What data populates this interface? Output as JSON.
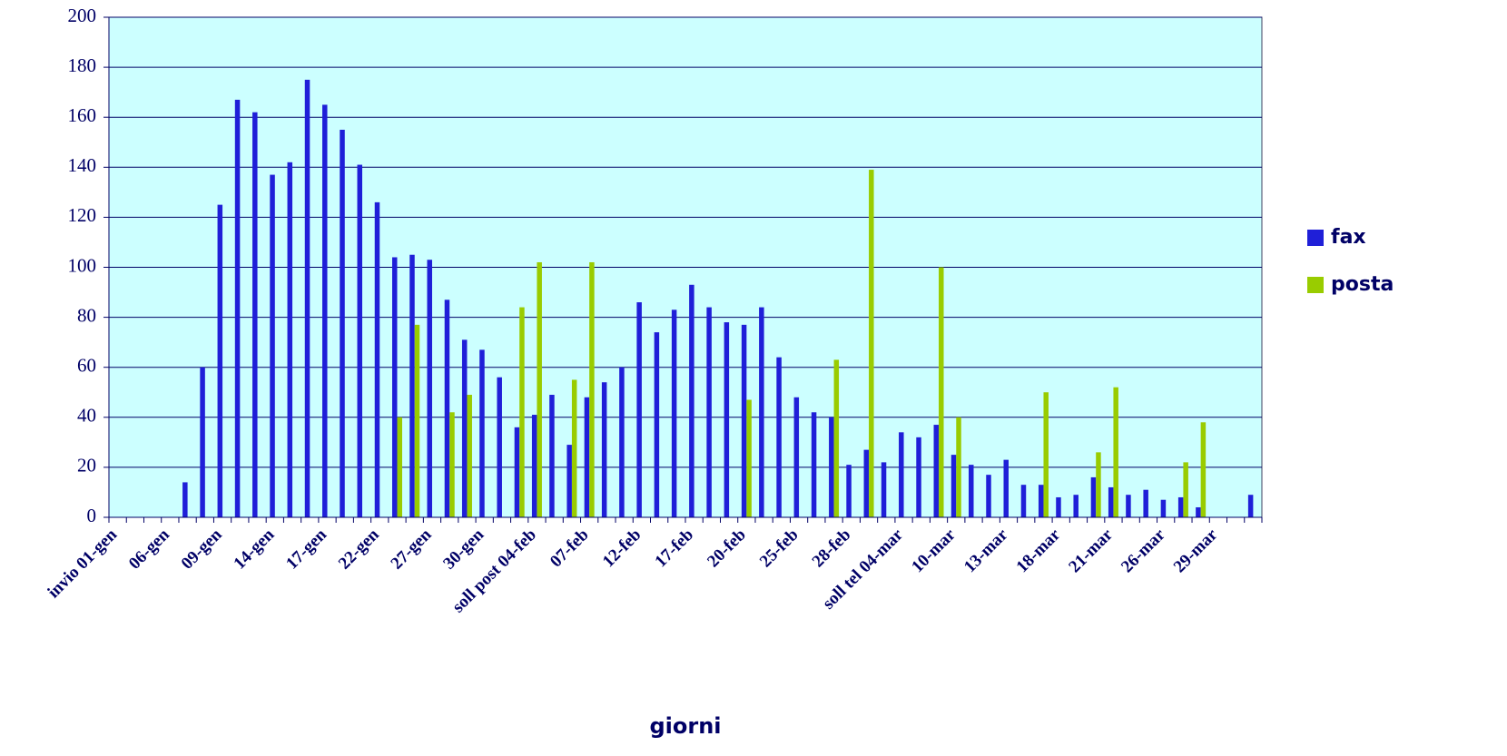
{
  "chart_data": {
    "type": "bar",
    "x_label": "giorni",
    "categories": [
      "invio 01-gen",
      null,
      null,
      "06-gen",
      null,
      null,
      "09-gen",
      null,
      null,
      "14-gen",
      null,
      null,
      "17-gen",
      null,
      null,
      "22-gen",
      null,
      null,
      "27-gen",
      null,
      null,
      "30-gen",
      null,
      null,
      "soll post 04-feb",
      null,
      null,
      "07-feb",
      null,
      null,
      "12-feb",
      null,
      null,
      "17-feb",
      null,
      null,
      "20-feb",
      null,
      null,
      "25-feb",
      null,
      null,
      "28-feb",
      null,
      null,
      "soll tel 04-mar",
      null,
      null,
      "10-mar",
      null,
      null,
      "13-mar",
      null,
      null,
      "18-mar",
      null,
      null,
      "21-mar",
      null,
      null,
      "26-mar",
      null,
      null,
      "29-mar",
      null,
      null
    ],
    "series": [
      {
        "name": "fax",
        "color": "#1f1fd8",
        "values": [
          0,
          0,
          0,
          0,
          14,
          60,
          125,
          167,
          162,
          137,
          142,
          175,
          165,
          155,
          141,
          126,
          104,
          105,
          103,
          87,
          71,
          67,
          56,
          36,
          41,
          49,
          29,
          48,
          54,
          60,
          86,
          74,
          83,
          93,
          84,
          78,
          77,
          84,
          64,
          48,
          42,
          40,
          21,
          27,
          22,
          34,
          32,
          37,
          25,
          21,
          17,
          23,
          13,
          13,
          8,
          9,
          16,
          12,
          9,
          11,
          7,
          8,
          4,
          0,
          0,
          9
        ]
      },
      {
        "name": "posta",
        "color": "#99cc00",
        "values": [
          0,
          0,
          0,
          0,
          0,
          0,
          0,
          0,
          0,
          0,
          0,
          0,
          0,
          0,
          0,
          0,
          40,
          77,
          0,
          42,
          49,
          0,
          0,
          84,
          102,
          0,
          55,
          102,
          0,
          0,
          0,
          0,
          0,
          0,
          0,
          0,
          47,
          0,
          0,
          0,
          0,
          63,
          0,
          139,
          0,
          0,
          0,
          100,
          40,
          0,
          0,
          0,
          0,
          50,
          0,
          0,
          26,
          52,
          0,
          0,
          0,
          22,
          38,
          0,
          0,
          0
        ]
      }
    ],
    "ylim": [
      0,
      200
    ],
    "yticks": [
      0,
      20,
      40,
      60,
      80,
      100,
      120,
      140,
      160,
      180,
      200
    ],
    "grid": true,
    "legend": "right",
    "background": "#ccffff"
  }
}
